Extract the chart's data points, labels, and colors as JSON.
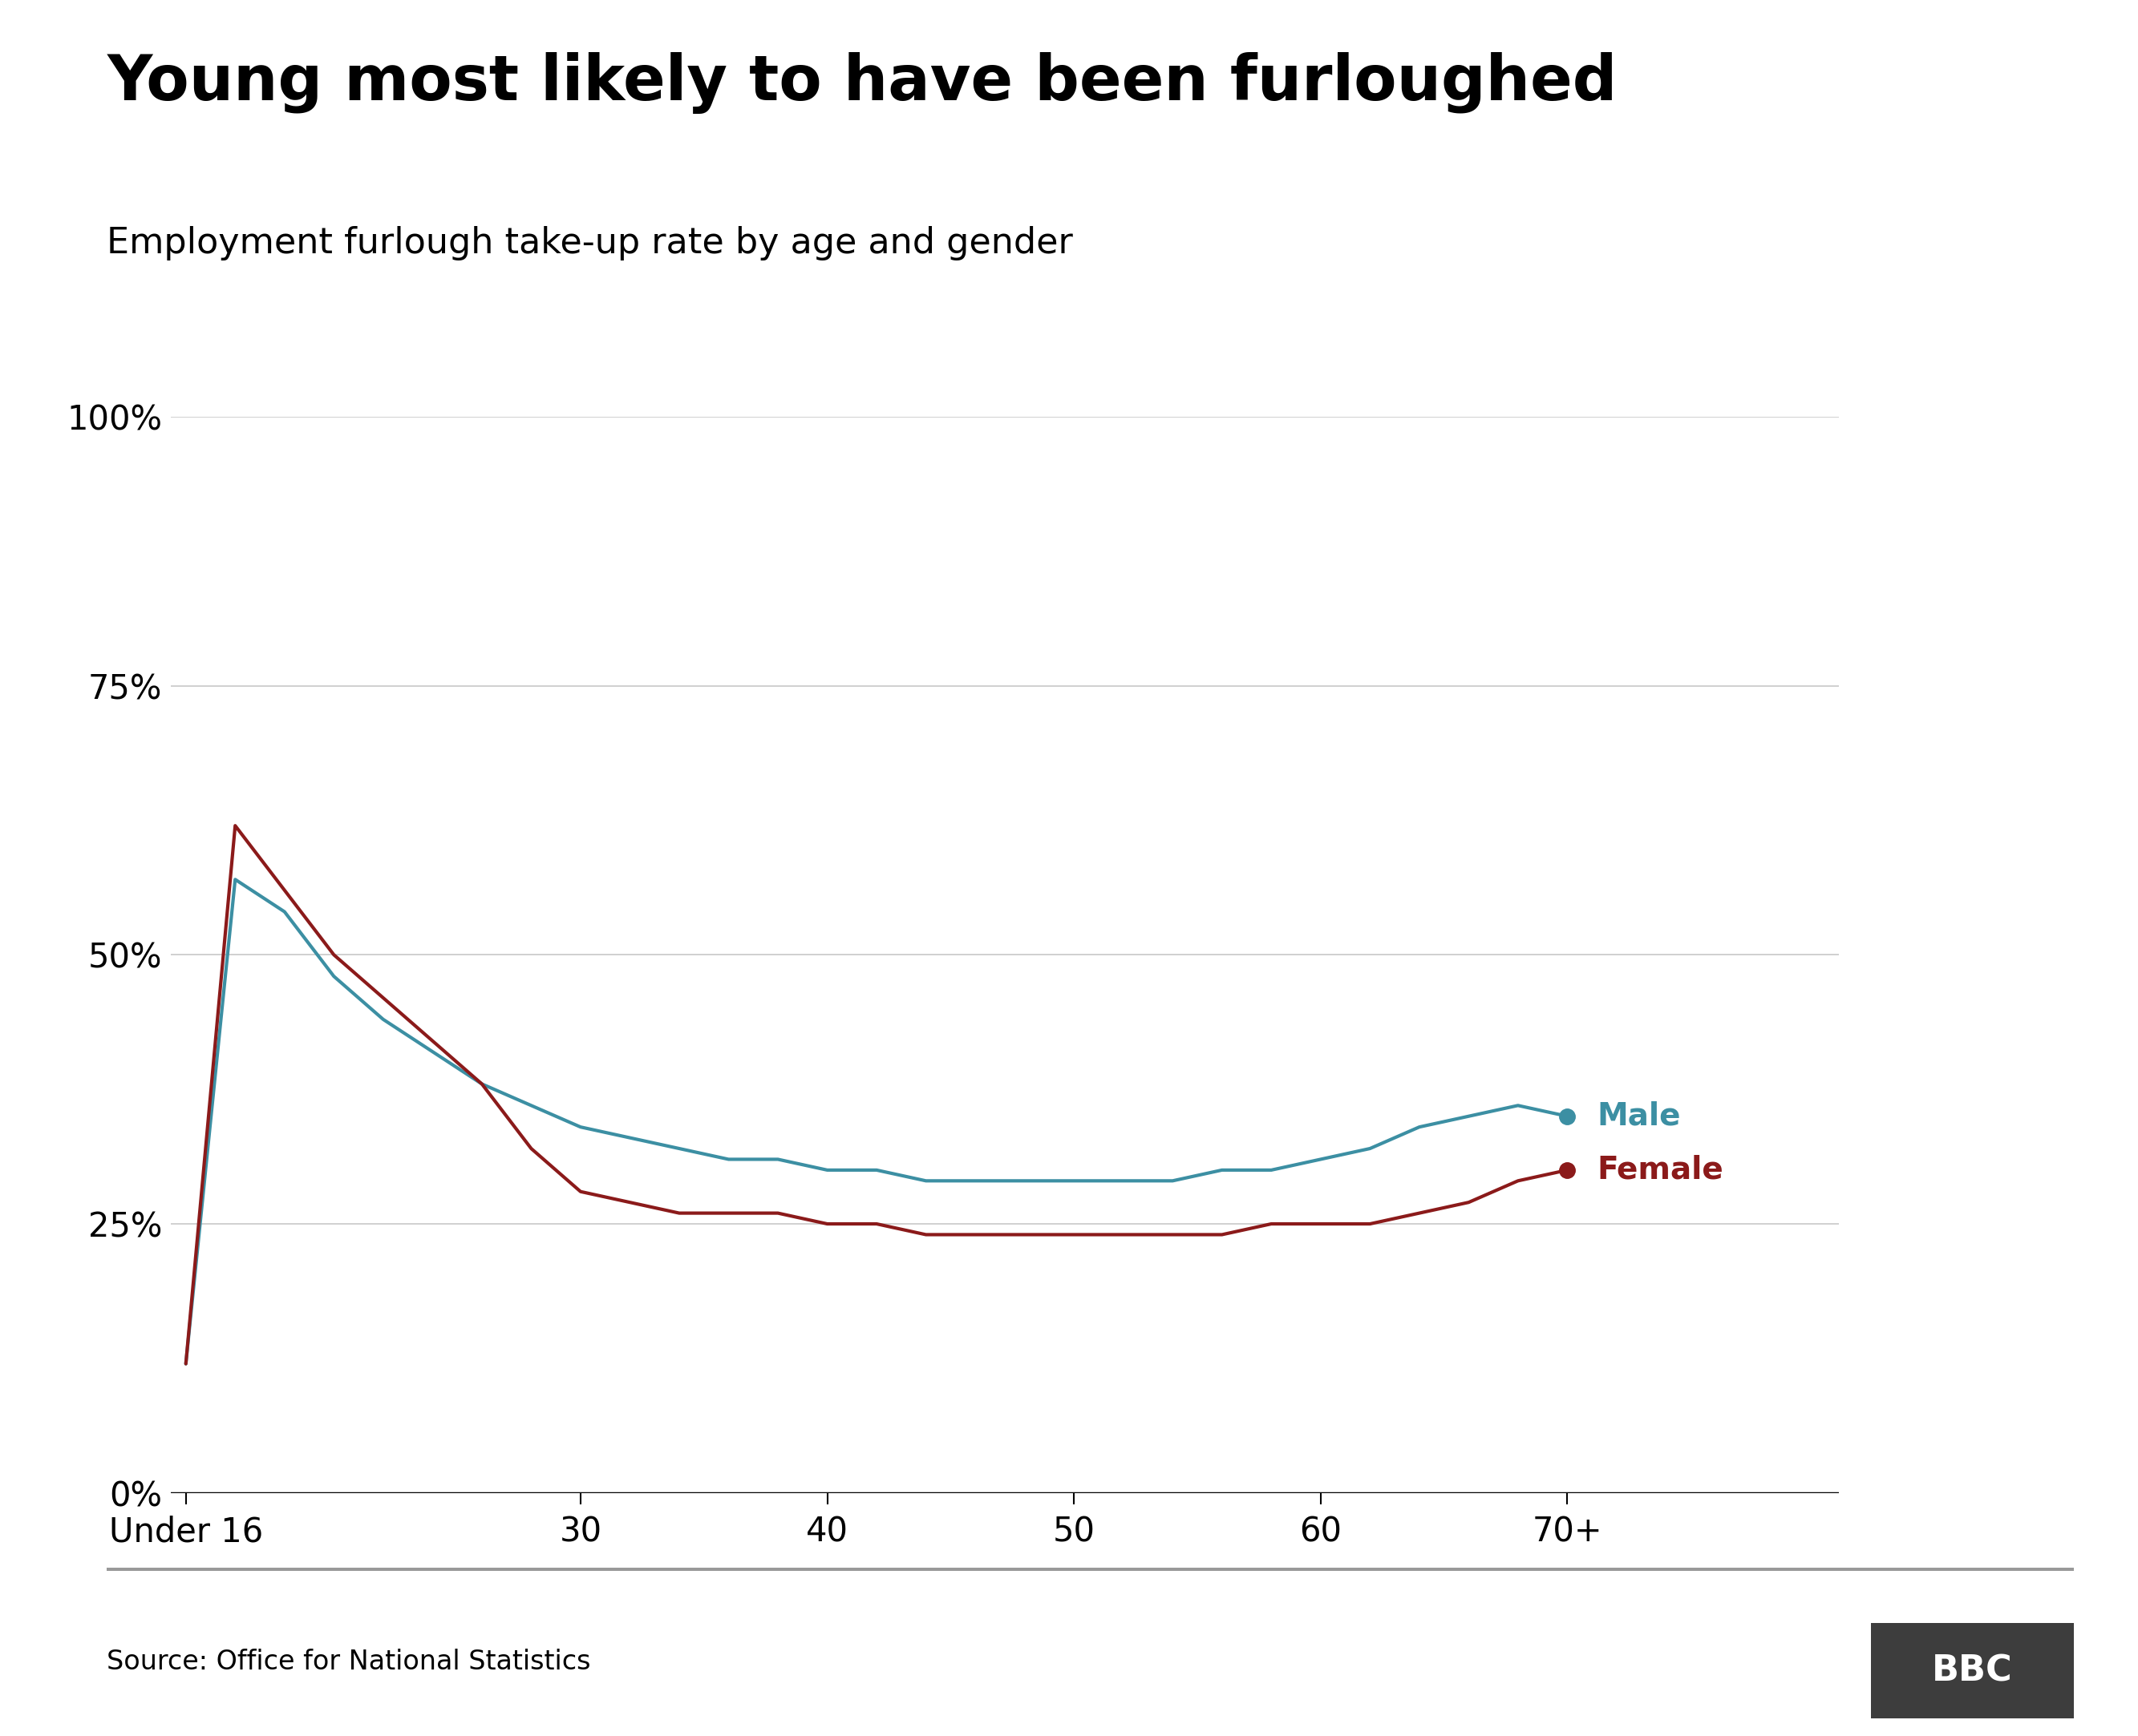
{
  "title": "Young most likely to have been furloughed",
  "subtitle": "Employment furlough take-up rate by age and gender",
  "source": "Source: Office for National Statistics",
  "male_color": "#3c8fa3",
  "female_color": "#8b1a1a",
  "background_color": "#ffffff",
  "x_tick_labels": [
    "Under 16",
    "30",
    "40",
    "50",
    "60",
    "70+"
  ],
  "male_values": [
    12,
    57,
    54,
    48,
    44,
    41,
    38,
    36,
    34,
    33,
    32,
    31,
    31,
    30,
    30,
    29,
    29,
    29,
    29,
    29,
    29,
    30,
    30,
    31,
    32,
    34,
    35,
    36,
    35
  ],
  "female_values": [
    12,
    62,
    56,
    50,
    46,
    42,
    38,
    32,
    28,
    27,
    26,
    26,
    26,
    25,
    25,
    24,
    24,
    24,
    24,
    24,
    24,
    24,
    25,
    25,
    25,
    26,
    27,
    29,
    30
  ],
  "n_points": 29,
  "under16_idx": 0,
  "peak_idx": 1,
  "idx_30": 8,
  "idx_40": 13,
  "idx_50": 18,
  "idx_60": 23,
  "idx_70": 28,
  "ylim": [
    0,
    100
  ],
  "yticks": [
    0,
    25,
    50,
    75,
    100
  ],
  "ytick_labels": [
    "0%",
    "25%",
    "50%",
    "75%",
    "100%"
  ],
  "line_width": 3.0,
  "bbc_box_color": "#3d3d3d",
  "bbc_text_color": "#ffffff",
  "title_fontsize": 56,
  "subtitle_fontsize": 32,
  "tick_fontsize": 30,
  "label_fontsize": 28,
  "source_fontsize": 24
}
